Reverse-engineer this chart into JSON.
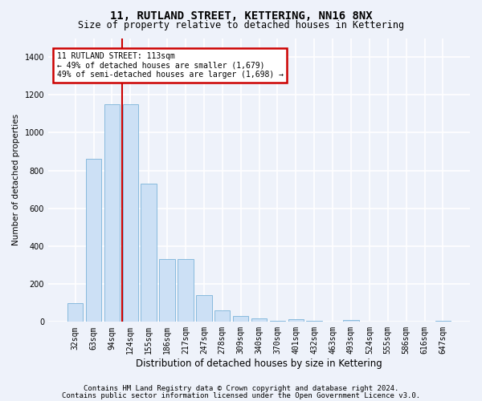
{
  "title": "11, RUTLAND STREET, KETTERING, NN16 8NX",
  "subtitle": "Size of property relative to detached houses in Kettering",
  "xlabel": "Distribution of detached houses by size in Kettering",
  "ylabel": "Number of detached properties",
  "bar_color": "#cce0f5",
  "bar_edge_color": "#7ab3d9",
  "categories": [
    "32sqm",
    "63sqm",
    "94sqm",
    "124sqm",
    "155sqm",
    "186sqm",
    "217sqm",
    "247sqm",
    "278sqm",
    "309sqm",
    "340sqm",
    "370sqm",
    "401sqm",
    "432sqm",
    "463sqm",
    "493sqm",
    "524sqm",
    "555sqm",
    "586sqm",
    "616sqm",
    "647sqm"
  ],
  "values": [
    100,
    860,
    1150,
    1150,
    730,
    330,
    330,
    140,
    60,
    30,
    20,
    5,
    15,
    5,
    2,
    10,
    2,
    2,
    2,
    2,
    5
  ],
  "ylim": [
    0,
    1500
  ],
  "yticks": [
    0,
    200,
    400,
    600,
    800,
    1000,
    1200,
    1400
  ],
  "vline_x_pos": 2.55,
  "annotation_text": "11 RUTLAND STREET: 113sqm\n← 49% of detached houses are smaller (1,679)\n49% of semi-detached houses are larger (1,698) →",
  "annotation_box_color": "#ffffff",
  "annotation_box_edge_color": "#cc0000",
  "vline_color": "#cc0000",
  "footer_line1": "Contains HM Land Registry data © Crown copyright and database right 2024.",
  "footer_line2": "Contains public sector information licensed under the Open Government Licence v3.0.",
  "background_color": "#eef2fa",
  "plot_bg_color": "#eef2fa",
  "grid_color": "#ffffff",
  "title_fontsize": 10,
  "subtitle_fontsize": 8.5,
  "xlabel_fontsize": 8.5,
  "ylabel_fontsize": 7.5,
  "tick_fontsize": 7,
  "annot_fontsize": 7,
  "footer_fontsize": 6.5
}
